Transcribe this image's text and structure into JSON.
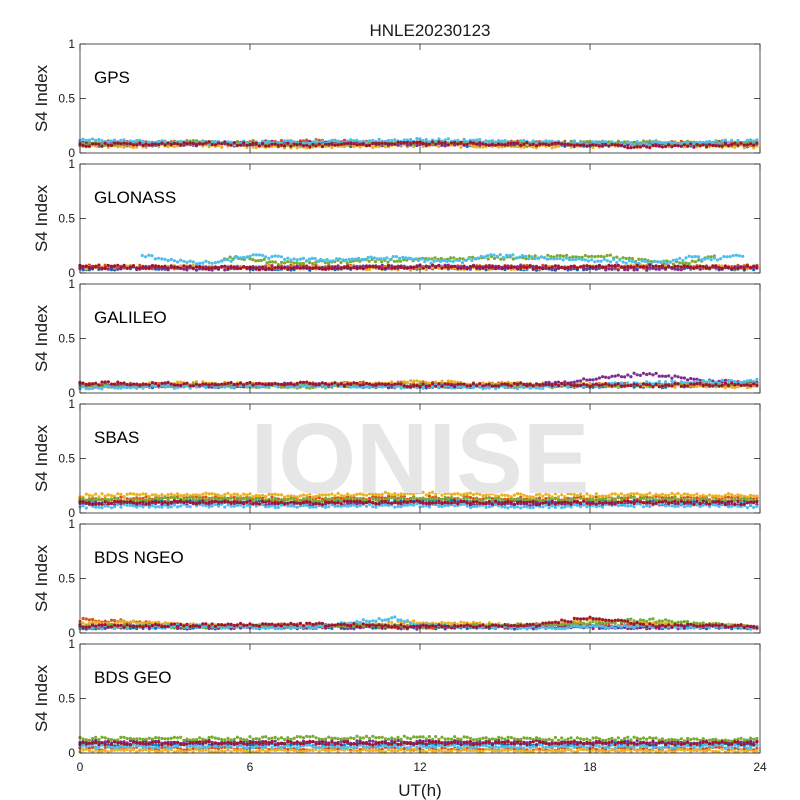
{
  "figure": {
    "title": "HNLE20230123",
    "xlabel": "UT(h)",
    "xticks": [
      0,
      6,
      12,
      18,
      24
    ],
    "watermark": "IONISE"
  },
  "colors": [
    "#0072BD",
    "#D95319",
    "#EDB120",
    "#7E2F8E",
    "#77AC30",
    "#4DBEEE",
    "#A2142F"
  ],
  "chart_data": [
    {
      "type": "scatter",
      "label": "GPS",
      "ylabel": "S4 Index",
      "xlim": [
        0,
        24
      ],
      "ylim": [
        0,
        1
      ],
      "yticks": [
        0,
        0.5,
        1
      ],
      "grid": false,
      "series": [
        {
          "x": [
            0,
            4,
            8,
            12,
            16,
            20,
            24
          ],
          "y": [
            0.07,
            0.08,
            0.07,
            0.08,
            0.07,
            0.08,
            0.07
          ]
        },
        {
          "x": [
            0,
            4,
            8,
            12,
            16,
            20,
            24
          ],
          "y": [
            0.1,
            0.09,
            0.11,
            0.09,
            0.1,
            0.09,
            0.1
          ]
        },
        {
          "x": [
            0,
            4,
            8,
            12,
            16,
            20,
            24
          ],
          "y": [
            0.06,
            0.07,
            0.06,
            0.07,
            0.06,
            0.07,
            0.06
          ]
        },
        {
          "x": [
            0,
            4,
            8,
            12,
            16,
            20,
            24
          ],
          "y": [
            0.09,
            0.08,
            0.1,
            0.08,
            0.09,
            0.08,
            0.09
          ]
        },
        {
          "x": [
            0,
            4,
            8,
            12,
            16,
            20,
            24
          ],
          "y": [
            0.08,
            0.1,
            0.08,
            0.1,
            0.09,
            0.1,
            0.08
          ]
        },
        {
          "x": [
            0,
            4,
            8,
            12,
            16,
            20,
            24
          ],
          "y": [
            0.12,
            0.09,
            0.1,
            0.12,
            0.1,
            0.09,
            0.11
          ]
        },
        {
          "x": [
            0,
            4,
            8,
            12,
            16,
            20,
            24
          ],
          "y": [
            0.07,
            0.09,
            0.07,
            0.09,
            0.08,
            0.06,
            0.08
          ]
        }
      ]
    },
    {
      "type": "scatter",
      "label": "GLONASS",
      "ylabel": "S4 Index",
      "xlim": [
        0,
        24
      ],
      "ylim": [
        0,
        1
      ],
      "yticks": [
        0,
        0.5,
        1
      ],
      "grid": false,
      "series": [
        {
          "x": [
            0,
            4,
            8,
            12,
            16,
            20,
            24
          ],
          "y": [
            0.04,
            0.05,
            0.04,
            0.05,
            0.04,
            0.05,
            0.04
          ]
        },
        {
          "x": [
            0,
            4,
            8,
            12,
            16,
            20,
            24
          ],
          "y": [
            0.06,
            0.05,
            0.06,
            0.05,
            0.06,
            0.05,
            0.06
          ]
        },
        {
          "x": [
            0,
            4,
            8,
            12,
            16,
            20,
            24
          ],
          "y": [
            0.05,
            0.06,
            0.05,
            0.04,
            0.05,
            0.06,
            0.05
          ]
        },
        {
          "x": [
            0,
            4,
            8,
            12,
            16,
            20,
            24
          ],
          "y": [
            0.05,
            0.04,
            0.05,
            0.06,
            0.05,
            0.04,
            0.05
          ]
        },
        {
          "x": [
            5,
            5.5,
            6,
            6.5,
            7,
            18.5,
            19.5,
            20.5,
            21.5,
            22.5
          ],
          "y": [
            0.12,
            0.14,
            0.13,
            0.11,
            0.09,
            0.16,
            0.12,
            0.1,
            0.09,
            0.16
          ]
        },
        {
          "x": [
            2.2,
            3,
            4,
            5,
            6,
            7,
            8,
            8.5,
            11.5,
            12.5,
            13.5,
            14.5,
            20.5,
            21.5,
            22.5,
            23.5
          ],
          "y": [
            0.16,
            0.13,
            0.09,
            0.1,
            0.16,
            0.14,
            0.12,
            0.12,
            0.14,
            0.1,
            0.11,
            0.16,
            0.09,
            0.14,
            0.13,
            0.16
          ]
        },
        {
          "x": [
            0,
            4,
            8,
            12,
            16,
            20,
            24
          ],
          "y": [
            0.06,
            0.05,
            0.04,
            0.06,
            0.05,
            0.06,
            0.05
          ]
        }
      ]
    },
    {
      "type": "scatter",
      "label": "GALILEO",
      "ylabel": "S4 Index",
      "xlim": [
        0,
        24
      ],
      "ylim": [
        0,
        1
      ],
      "yticks": [
        0,
        0.5,
        1
      ],
      "grid": false,
      "series": [
        {
          "x": [
            0,
            4,
            8,
            12,
            16,
            20,
            24
          ],
          "y": [
            0.07,
            0.06,
            0.07,
            0.06,
            0.07,
            0.06,
            0.08
          ]
        },
        {
          "x": [
            0,
            4,
            8,
            12,
            16,
            20,
            24
          ],
          "y": [
            0.08,
            0.07,
            0.08,
            0.09,
            0.07,
            0.08,
            0.07
          ]
        },
        {
          "x": [
            0,
            4,
            8,
            12,
            16,
            20,
            24
          ],
          "y": [
            0.06,
            0.09,
            0.07,
            0.1,
            0.08,
            0.07,
            0.06
          ]
        },
        {
          "x": [
            0,
            4,
            8,
            12,
            16,
            20,
            22,
            24
          ],
          "y": [
            0.07,
            0.06,
            0.08,
            0.06,
            0.07,
            0.18,
            0.11,
            0.1
          ]
        },
        {
          "x": [
            0,
            4,
            8,
            12,
            16,
            20,
            24
          ],
          "y": [
            0.06,
            0.07,
            0.06,
            0.07,
            0.06,
            0.07,
            0.09
          ]
        },
        {
          "x": [
            0,
            4,
            8,
            12,
            16,
            20,
            24
          ],
          "y": [
            0.05,
            0.06,
            0.07,
            0.06,
            0.05,
            0.09,
            0.11
          ]
        },
        {
          "x": [
            0,
            4,
            8,
            12,
            16,
            20,
            24
          ],
          "y": [
            0.09,
            0.08,
            0.09,
            0.07,
            0.08,
            0.07,
            0.08
          ]
        }
      ]
    },
    {
      "type": "scatter",
      "label": "SBAS",
      "ylabel": "S4 Index",
      "xlim": [
        0,
        24
      ],
      "ylim": [
        0,
        1
      ],
      "yticks": [
        0,
        0.5,
        1
      ],
      "grid": false,
      "series": [
        {
          "x": [
            0,
            4,
            8,
            12,
            16,
            20,
            24
          ],
          "y": [
            0.1,
            0.11,
            0.1,
            0.11,
            0.1,
            0.11,
            0.1
          ]
        },
        {
          "x": [
            0,
            4,
            8,
            12,
            16,
            20,
            24
          ],
          "y": [
            0.13,
            0.14,
            0.13,
            0.14,
            0.13,
            0.14,
            0.13
          ]
        },
        {
          "x": [
            0,
            4,
            8,
            12,
            16,
            20,
            24
          ],
          "y": [
            0.16,
            0.17,
            0.16,
            0.18,
            0.16,
            0.17,
            0.16
          ]
        },
        {
          "x": [
            0,
            4,
            8,
            12,
            16,
            20,
            24
          ],
          "y": [
            0.08,
            0.09,
            0.08,
            0.09,
            0.08,
            0.09,
            0.08
          ]
        },
        {
          "x": [
            0,
            4,
            8,
            12,
            16,
            20,
            24
          ],
          "y": [
            0.12,
            0.13,
            0.12,
            0.13,
            0.12,
            0.13,
            0.12
          ]
        },
        {
          "x": [
            0,
            4,
            8,
            12,
            16,
            20,
            24
          ],
          "y": [
            0.06,
            0.07,
            0.06,
            0.07,
            0.06,
            0.07,
            0.06
          ]
        },
        {
          "x": [
            0,
            4,
            8,
            12,
            16,
            20,
            24
          ],
          "y": [
            0.09,
            0.1,
            0.09,
            0.1,
            0.09,
            0.1,
            0.09
          ]
        }
      ]
    },
    {
      "type": "scatter",
      "label": "BDS NGEO",
      "ylabel": "S4 Index",
      "xlim": [
        0,
        24
      ],
      "ylim": [
        0,
        1
      ],
      "yticks": [
        0,
        0.5,
        1
      ],
      "grid": false,
      "series": [
        {
          "x": [
            0,
            4,
            8,
            12,
            16,
            20,
            24
          ],
          "y": [
            0.05,
            0.06,
            0.05,
            0.06,
            0.05,
            0.06,
            0.05
          ]
        },
        {
          "x": [
            0,
            2,
            4,
            8,
            12,
            16,
            20,
            24
          ],
          "y": [
            0.12,
            0.1,
            0.06,
            0.07,
            0.06,
            0.07,
            0.08,
            0.06
          ]
        },
        {
          "x": [
            0,
            2,
            4,
            8,
            12,
            16,
            18,
            20,
            24
          ],
          "y": [
            0.08,
            0.1,
            0.07,
            0.06,
            0.1,
            0.07,
            0.13,
            0.09,
            0.06
          ]
        },
        {
          "x": [
            0,
            4,
            8,
            12,
            16,
            20,
            24
          ],
          "y": [
            0.06,
            0.05,
            0.06,
            0.05,
            0.06,
            0.05,
            0.06
          ]
        },
        {
          "x": [
            0,
            4,
            8,
            12,
            16,
            20,
            24
          ],
          "y": [
            0.07,
            0.06,
            0.07,
            0.06,
            0.07,
            0.12,
            0.05
          ]
        },
        {
          "x": [
            0,
            4,
            8,
            11,
            12,
            16,
            20,
            24
          ],
          "y": [
            0.05,
            0.06,
            0.05,
            0.14,
            0.07,
            0.05,
            0.06,
            0.05
          ]
        },
        {
          "x": [
            0,
            4,
            8,
            12,
            16,
            18,
            20,
            24
          ],
          "y": [
            0.06,
            0.07,
            0.08,
            0.06,
            0.07,
            0.14,
            0.07,
            0.06
          ]
        }
      ]
    },
    {
      "type": "scatter",
      "label": "BDS GEO",
      "ylabel": "S4 Index",
      "xlim": [
        0,
        24
      ],
      "ylim": [
        0,
        1
      ],
      "yticks": [
        0,
        0.5,
        1
      ],
      "grid": false,
      "series": [
        {
          "x": [
            0,
            4,
            8,
            12,
            16,
            20,
            24
          ],
          "y": [
            0.08,
            0.08,
            0.08,
            0.08,
            0.08,
            0.08,
            0.08
          ]
        },
        {
          "x": [
            0,
            4,
            8,
            12,
            16,
            20,
            24
          ],
          "y": [
            0.04,
            0.04,
            0.04,
            0.04,
            0.04,
            0.04,
            0.04
          ]
        },
        {
          "x": [
            0,
            4,
            8,
            12,
            16,
            20,
            24
          ],
          "y": [
            0.02,
            0.02,
            0.02,
            0.02,
            0.02,
            0.02,
            0.02
          ]
        },
        {
          "x": [
            0,
            4,
            8,
            12,
            16,
            20,
            24
          ],
          "y": [
            0.1,
            0.1,
            0.1,
            0.1,
            0.1,
            0.1,
            0.1
          ]
        },
        {
          "x": [
            0,
            4,
            8,
            12,
            16,
            20,
            24
          ],
          "y": [
            0.13,
            0.13,
            0.14,
            0.14,
            0.13,
            0.13,
            0.12
          ]
        },
        {
          "x": [
            0,
            4,
            8,
            12,
            16,
            20,
            24
          ],
          "y": [
            0.06,
            0.06,
            0.06,
            0.06,
            0.06,
            0.06,
            0.06
          ]
        },
        {
          "x": [
            0,
            4,
            8,
            12,
            16,
            20,
            24
          ],
          "y": [
            0.09,
            0.09,
            0.09,
            0.09,
            0.09,
            0.09,
            0.09
          ]
        }
      ]
    }
  ]
}
